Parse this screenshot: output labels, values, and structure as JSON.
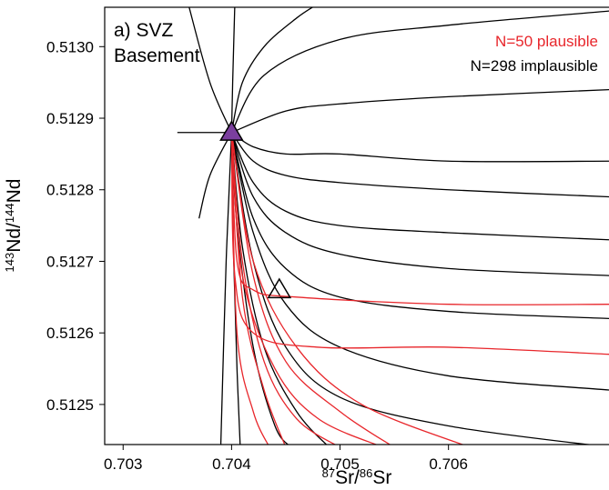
{
  "chart_data": {
    "type": "line",
    "title": "a) SVZ",
    "subtitle": "Basement",
    "x_label": [
      "87",
      "Sr/",
      "86",
      "Sr"
    ],
    "y_label": [
      "143",
      "Nd/",
      "144",
      "Nd"
    ],
    "xlim": [
      0.70283,
      0.70748
    ],
    "ylim": [
      0.512444,
      0.513055
    ],
    "xticks": [
      0.703,
      0.704,
      0.705,
      0.706
    ],
    "yticks": [
      {
        "value": 0.5125,
        "label": "0.5125"
      },
      {
        "value": 0.5126,
        "label": "0.5126"
      },
      {
        "value": 0.5127,
        "label": "0.5127"
      },
      {
        "value": 0.5128,
        "label": "0.5128"
      },
      {
        "value": 0.5129,
        "label": "0.5129"
      },
      {
        "value": 0.513,
        "label": "0.5130"
      }
    ],
    "series": [
      {
        "name": "N=298 implausible",
        "color": "#000000",
        "curves": [
          {
            "x": [
              0.704,
              0.7045,
              0.705,
              0.706,
              0.7075
            ],
            "values": [
              0.51288,
              0.51291,
              0.51292,
              0.51293,
              0.51294
            ]
          },
          {
            "x": [
              0.704,
              0.7043,
              0.705,
              0.706,
              0.7075
            ],
            "values": [
              0.51288,
              0.51296,
              0.51301,
              0.51303,
              0.51305
            ]
          },
          {
            "x": [
              0.704,
              0.7042,
              0.7045,
              0.705,
              0.706,
              0.7075
            ],
            "values": [
              0.51288,
              0.51286,
              0.51285,
              0.51285,
              0.51284,
              0.51284
            ]
          },
          {
            "x": [
              0.704,
              0.7042,
              0.7045,
              0.705,
              0.706,
              0.7075
            ],
            "values": [
              0.51288,
              0.51284,
              0.51282,
              0.51281,
              0.5128,
              0.51279
            ]
          },
          {
            "x": [
              0.704,
              0.7042,
              0.7045,
              0.705,
              0.706,
              0.7075
            ],
            "values": [
              0.51288,
              0.51281,
              0.51277,
              0.51275,
              0.51274,
              0.51273
            ]
          },
          {
            "x": [
              0.704,
              0.7042,
              0.7045,
              0.705,
              0.706,
              0.7075
            ],
            "values": [
              0.51288,
              0.51279,
              0.51274,
              0.51271,
              0.51269,
              0.51268
            ]
          },
          {
            "x": [
              0.704,
              0.7042,
              0.7045,
              0.705,
              0.706,
              0.7075
            ],
            "values": [
              0.51288,
              0.51276,
              0.51269,
              0.51265,
              0.51263,
              0.51262
            ]
          },
          {
            "x": [
              0.704,
              0.7042,
              0.7045,
              0.705,
              0.706,
              0.7075
            ],
            "values": [
              0.51288,
              0.51274,
              0.51264,
              0.51258,
              0.51254,
              0.51252
            ]
          },
          {
            "x": [
              0.704,
              0.7042,
              0.7045,
              0.705,
              0.706,
              0.7075
            ],
            "values": [
              0.51288,
              0.5127,
              0.51258,
              0.51251,
              0.51247,
              0.51244
            ]
          },
          {
            "x": [
              0.704,
              0.7041,
              0.7043,
              0.7046,
              0.7049
            ],
            "values": [
              0.51288,
              0.51272,
              0.51258,
              0.51249,
              0.51244
            ]
          },
          {
            "x": [
              0.704,
              0.70405,
              0.7042,
              0.7044,
              0.70455
            ],
            "values": [
              0.51288,
              0.51275,
              0.51258,
              0.51247,
              0.51244
            ]
          },
          {
            "x": [
              0.704,
              0.70402,
              0.70405,
              0.70408
            ],
            "values": [
              0.51288,
              0.5127,
              0.51255,
              0.51244
            ]
          },
          {
            "x": [
              0.704,
              0.70395,
              0.7039
            ],
            "values": [
              0.51288,
              0.5127,
              0.51244
            ]
          },
          {
            "x": [
              0.704,
              0.7041,
              0.7043,
              0.7046,
              0.7048
            ],
            "values": [
              0.51288,
              0.51295,
              0.513,
              0.51304,
              0.51306
            ]
          },
          {
            "x": [
              0.704,
              0.70401,
              0.70403
            ],
            "values": [
              0.51288,
              0.51295,
              0.51306
            ]
          },
          {
            "x": [
              0.704,
              0.7038,
              0.7036
            ],
            "values": [
              0.51288,
              0.51295,
              0.51306
            ]
          },
          {
            "x": [
              0.7035,
              0.704
            ],
            "values": [
              0.51288,
              0.51288
            ]
          },
          {
            "x": [
              0.704,
              0.7038,
              0.7037
            ],
            "values": [
              0.51288,
              0.51282,
              0.51276
            ]
          }
        ]
      },
      {
        "name": "N=50 plausible",
        "color": "#e8262b",
        "curves": [
          {
            "x": [
              0.704,
              0.7041,
              0.7043,
              0.7046,
              0.705
            ],
            "values": [
              0.51288,
              0.5127,
              0.51256,
              0.51248,
              0.51244
            ]
          },
          {
            "x": [
              0.704,
              0.7041,
              0.7043,
              0.7045
            ],
            "values": [
              0.51288,
              0.51265,
              0.51252,
              0.51244
            ]
          },
          {
            "x": [
              0.704,
              0.70405,
              0.7042,
              0.70435
            ],
            "values": [
              0.51288,
              0.5126,
              0.51249,
              0.51244
            ]
          },
          {
            "x": [
              0.704,
              0.7042,
              0.7045,
              0.705,
              0.7055
            ],
            "values": [
              0.51288,
              0.51268,
              0.51256,
              0.51249,
              0.51244
            ]
          },
          {
            "x": [
              0.704,
              0.70405,
              0.7042,
              0.7046,
              0.706,
              0.7075
            ],
            "values": [
              0.51288,
              0.5127,
              0.51266,
              0.51265,
              0.51264,
              0.51264
            ]
          },
          {
            "x": [
              0.704,
              0.70403,
              0.7042,
              0.7048,
              0.706,
              0.7075
            ],
            "values": [
              0.51288,
              0.51268,
              0.5126,
              0.51258,
              0.51258,
              0.51257
            ]
          },
          {
            "x": [
              0.704,
              0.7041,
              0.7044,
              0.7048,
              0.7054
            ],
            "values": [
              0.51288,
              0.51268,
              0.51255,
              0.51248,
              0.51244
            ]
          },
          {
            "x": [
              0.704,
              0.7042,
              0.7046,
              0.7052,
              0.7062
            ],
            "values": [
              0.51288,
              0.5127,
              0.51258,
              0.5125,
              0.51244
            ]
          }
        ]
      }
    ],
    "markers": [
      {
        "x": 0.704,
        "y": 0.51288,
        "color": "#000000",
        "fill": "#7b3f9e"
      },
      {
        "x": 0.70444,
        "y": 0.51266,
        "color": "#000000",
        "fill": "#e8262b"
      }
    ]
  }
}
